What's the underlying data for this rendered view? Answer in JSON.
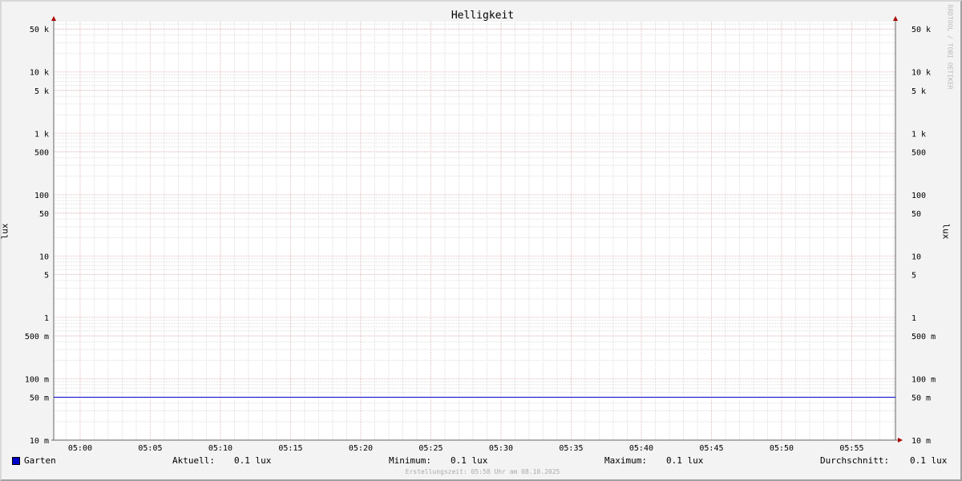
{
  "chart_data": {
    "type": "line",
    "title": "Helligkeit",
    "ylabel": "lux",
    "y_scale": "log",
    "ylim": [
      0.01,
      66000
    ],
    "y_ticks": [
      {
        "value": 0.01,
        "label": "10 m"
      },
      {
        "value": 0.05,
        "label": "50 m"
      },
      {
        "value": 0.1,
        "label": "100 m"
      },
      {
        "value": 0.5,
        "label": "500 m"
      },
      {
        "value": 1,
        "label": "1"
      },
      {
        "value": 5,
        "label": "5"
      },
      {
        "value": 10,
        "label": "10"
      },
      {
        "value": 50,
        "label": "50"
      },
      {
        "value": 100,
        "label": "100"
      },
      {
        "value": 500,
        "label": "500"
      },
      {
        "value": 1000,
        "label": "1 k"
      },
      {
        "value": 5000,
        "label": "5 k"
      },
      {
        "value": 10000,
        "label": "10 k"
      },
      {
        "value": 50000,
        "label": "50 k"
      }
    ],
    "xlim": [
      "04:58",
      "05:58"
    ],
    "x_ticks": [
      "05:00",
      "05:05",
      "05:10",
      "05:15",
      "05:20",
      "05:25",
      "05:30",
      "05:35",
      "05:40",
      "05:45",
      "05:50",
      "05:55"
    ],
    "grid": true,
    "series": [
      {
        "name": "Garten",
        "color": "#0000cc",
        "x": [
          "04:58",
          "05:58"
        ],
        "y": [
          0.05,
          0.05
        ]
      }
    ]
  },
  "watermark": "RRDTOOL / TOBI OETIKER",
  "legend": {
    "series_name": "Garten",
    "series_color": "#0000cc",
    "current_label": "Aktuell:",
    "current_value": "0.1 lux",
    "min_label": "Minimum:",
    "min_value": "0.1 lux",
    "max_label": "Maximum:",
    "max_value": "0.1 lux",
    "avg_label": "Durchschnitt:",
    "avg_value": "0.1 lux"
  },
  "footer": "Erstellungszeit: 05:58 Uhr am 08.10.2025"
}
